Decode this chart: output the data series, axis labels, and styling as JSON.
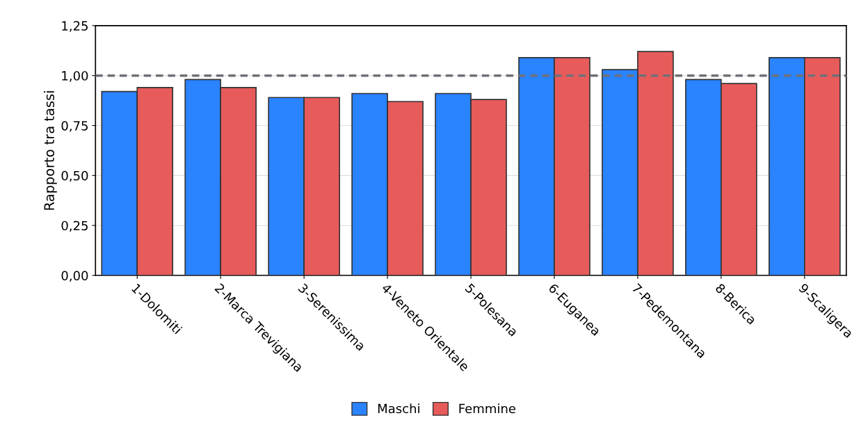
{
  "chart_data": {
    "type": "bar",
    "ylabel": "Rapporto tra tassi",
    "categories": [
      "1-Dolomiti",
      "2-Marca Trevigiana",
      "3-Serenissima",
      "4-Veneto Orientale",
      "5-Polesana",
      "6-Euganea",
      "7-Pedemontana",
      "8-Berica",
      "9-Scaligera"
    ],
    "series": [
      {
        "name": "Maschi",
        "color": "#2a83ff",
        "values": [
          0.92,
          0.98,
          0.89,
          0.91,
          0.91,
          1.09,
          1.03,
          0.98,
          1.09
        ]
      },
      {
        "name": "Femmine",
        "color": "#e85b5b",
        "values": [
          0.94,
          0.94,
          0.89,
          0.87,
          0.88,
          1.09,
          1.12,
          0.96,
          1.09
        ]
      }
    ],
    "ylim": [
      0,
      1.25
    ],
    "yticks": [
      {
        "value": 0,
        "label": "0,00"
      },
      {
        "value": 0.25,
        "label": "0,25"
      },
      {
        "value": 0.5,
        "label": "0,50"
      },
      {
        "value": 0.75,
        "label": "0,75"
      },
      {
        "value": 1.0,
        "label": "1,00"
      },
      {
        "value": 1.25,
        "label": "1,25"
      }
    ],
    "ref_lines": [
      {
        "axis": "y",
        "value": 1.0,
        "color": "#707078",
        "line_style": "dashed"
      }
    ],
    "grid": "y",
    "legend": "bottom"
  }
}
